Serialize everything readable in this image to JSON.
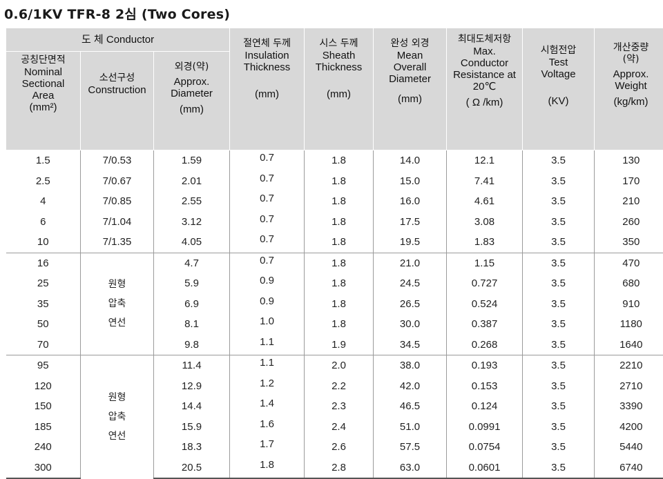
{
  "title": "0.6/1KV TFR-8 2심 (Two Cores)",
  "header": {
    "conductor_group": "도 체 Conductor",
    "col_area": {
      "ko": "공칭단면적",
      "en": "Nominal Sectional Area",
      "unit": "(mm²)"
    },
    "col_construction": {
      "ko": "소선구성",
      "en": "Construction"
    },
    "col_diameter": {
      "ko": "외경(약)",
      "en": "Approx. Diameter",
      "unit": "(mm)"
    },
    "col_insulation": {
      "ko": "절연체 두께",
      "en": "Insulation Thickness",
      "unit": "(mm)"
    },
    "col_sheath": {
      "ko": "시스 두께",
      "en": "Sheath Thickness",
      "unit": "(mm)"
    },
    "col_overall": {
      "ko": "완성 외경",
      "en": "Mean Overall Diameter",
      "unit": "(mm)"
    },
    "col_resistance": {
      "ko": "최대도체저항",
      "en": "Max. Conductor Resistance at 20℃",
      "unit": "( Ω /km)"
    },
    "col_voltage": {
      "ko": "시험전압",
      "en": "Test Voltage",
      "unit": "(KV)"
    },
    "col_weight": {
      "ko": "개산중량 (약)",
      "en": "Approx. Weight",
      "unit": "(kg/km)"
    }
  },
  "merged_construction_label": "원형 압축 연선",
  "rows": [
    {
      "area": "1.5",
      "construction": "7/0.53",
      "diameter": "1.59",
      "insulation": "0.7",
      "sheath": "1.8",
      "overall": "14.0",
      "resistance": "12.1",
      "voltage": "3.5",
      "weight": "130"
    },
    {
      "area": "2.5",
      "construction": "7/0.67",
      "diameter": "2.01",
      "insulation": "0.7",
      "sheath": "1.8",
      "overall": "15.0",
      "resistance": "7.41",
      "voltage": "3.5",
      "weight": "170"
    },
    {
      "area": "4",
      "construction": "7/0.85",
      "diameter": "2.55",
      "insulation": "0.7",
      "sheath": "1.8",
      "overall": "16.0",
      "resistance": "4.61",
      "voltage": "3.5",
      "weight": "210"
    },
    {
      "area": "6",
      "construction": "7/1.04",
      "diameter": "3.12",
      "insulation": "0.7",
      "sheath": "1.8",
      "overall": "17.5",
      "resistance": "3.08",
      "voltage": "3.5",
      "weight": "260"
    },
    {
      "area": "10",
      "construction": "7/1.35",
      "diameter": "4.05",
      "insulation": "0.7",
      "sheath": "1.8",
      "overall": "19.5",
      "resistance": "1.83",
      "voltage": "3.5",
      "weight": "350"
    },
    {
      "area": "16",
      "construction": "",
      "diameter": "4.7",
      "insulation": "0.7",
      "sheath": "1.8",
      "overall": "21.0",
      "resistance": "1.15",
      "voltage": "3.5",
      "weight": "470"
    },
    {
      "area": "25",
      "construction": "",
      "diameter": "5.9",
      "insulation": "0.9",
      "sheath": "1.8",
      "overall": "24.5",
      "resistance": "0.727",
      "voltage": "3.5",
      "weight": "680"
    },
    {
      "area": "35",
      "construction": "",
      "diameter": "6.9",
      "insulation": "0.9",
      "sheath": "1.8",
      "overall": "26.5",
      "resistance": "0.524",
      "voltage": "3.5",
      "weight": "910"
    },
    {
      "area": "50",
      "construction": "",
      "diameter": "8.1",
      "insulation": "1.0",
      "sheath": "1.8",
      "overall": "30.0",
      "resistance": "0.387",
      "voltage": "3.5",
      "weight": "1180"
    },
    {
      "area": "70",
      "construction": "",
      "diameter": "9.8",
      "insulation": "1.1",
      "sheath": "1.9",
      "overall": "34.5",
      "resistance": "0.268",
      "voltage": "3.5",
      "weight": "1640"
    },
    {
      "area": "95",
      "construction": "",
      "diameter": "11.4",
      "insulation": "1.1",
      "sheath": "2.0",
      "overall": "38.0",
      "resistance": "0.193",
      "voltage": "3.5",
      "weight": "2210"
    },
    {
      "area": "120",
      "construction": "",
      "diameter": "12.9",
      "insulation": "1.2",
      "sheath": "2.2",
      "overall": "42.0",
      "resistance": "0.153",
      "voltage": "3.5",
      "weight": "2710"
    },
    {
      "area": "150",
      "construction": "",
      "diameter": "14.4",
      "insulation": "1.4",
      "sheath": "2.3",
      "overall": "46.5",
      "resistance": "0.124",
      "voltage": "3.5",
      "weight": "3390"
    },
    {
      "area": "185",
      "construction": "",
      "diameter": "15.9",
      "insulation": "1.6",
      "sheath": "2.4",
      "overall": "51.0",
      "resistance": "0.0991",
      "voltage": "3.5",
      "weight": "4200"
    },
    {
      "area": "240",
      "construction": "",
      "diameter": "18.3",
      "insulation": "1.7",
      "sheath": "2.6",
      "overall": "57.5",
      "resistance": "0.0754",
      "voltage": "3.5",
      "weight": "5440"
    },
    {
      "area": "300",
      "construction": "",
      "diameter": "20.5",
      "insulation": "1.8",
      "sheath": "2.8",
      "overall": "63.0",
      "resistance": "0.0601",
      "voltage": "3.5",
      "weight": "6740"
    }
  ]
}
